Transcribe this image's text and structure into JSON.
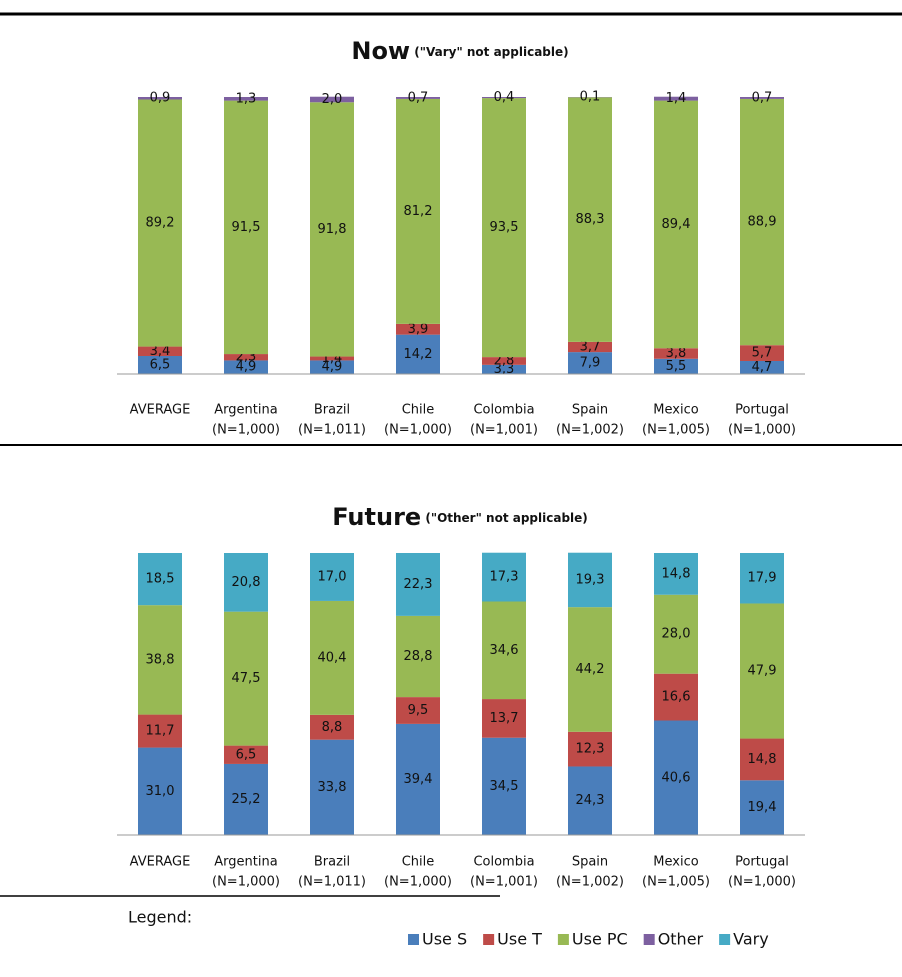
{
  "chart_data": [
    {
      "type": "stacked-bar",
      "title": "Now",
      "subtitle": "(\"Vary\" not applicable)",
      "categories": [
        [
          "AVERAGE"
        ],
        [
          "Argentina",
          "(N=1,000)"
        ],
        [
          "Brazil",
          "(N=1,011)"
        ],
        [
          "Chile",
          "(N=1,000)"
        ],
        [
          "Colombia",
          "(N=1,001)"
        ],
        [
          "Spain",
          "(N=1,002)"
        ],
        [
          "Mexico",
          "(N=1,005)"
        ],
        [
          "Portugal",
          "(N=1,000)"
        ]
      ],
      "ylim": [
        0,
        100
      ],
      "series": [
        {
          "name": "Use S",
          "color": "#4a7ebb",
          "values": [
            6.5,
            4.9,
            4.9,
            14.2,
            3.3,
            7.9,
            5.5,
            4.7
          ],
          "value_labels": [
            "6,5",
            "4,9",
            "4,9",
            "14,2",
            "3,3",
            "7,9",
            "5,5",
            "4,7"
          ]
        },
        {
          "name": "Use T",
          "color": "#be4b48",
          "values": [
            3.4,
            2.3,
            1.4,
            3.9,
            2.8,
            3.7,
            3.8,
            5.7
          ],
          "value_labels": [
            "3,4",
            "2,3",
            "1,4",
            "3,9",
            "2,8",
            "3,7",
            "3,8",
            "5,7"
          ]
        },
        {
          "name": "Use PC",
          "color": "#98b954",
          "values": [
            89.2,
            91.5,
            91.8,
            81.2,
            93.5,
            88.3,
            89.4,
            88.9
          ],
          "value_labels": [
            "89,2",
            "91,5",
            "91,8",
            "81,2",
            "93,5",
            "88,3",
            "89,4",
            "88,9"
          ]
        },
        {
          "name": "Other",
          "color": "#7d60a0",
          "values": [
            0.9,
            1.3,
            2.0,
            0.7,
            0.4,
            0.1,
            1.4,
            0.7
          ],
          "value_labels": [
            "0,9",
            "1,3",
            "2,0",
            "0,7",
            "0,4",
            "0,1",
            "1,4",
            "0,7"
          ]
        }
      ]
    },
    {
      "type": "stacked-bar",
      "title": "Future",
      "subtitle": "(\"Other\" not applicable)",
      "categories": [
        [
          "AVERAGE"
        ],
        [
          "Argentina",
          "(N=1,000)"
        ],
        [
          "Brazil",
          "(N=1,011)"
        ],
        [
          "Chile",
          "(N=1,000)"
        ],
        [
          "Colombia",
          "(N=1,001)"
        ],
        [
          "Spain",
          "(N=1,002)"
        ],
        [
          "Mexico",
          "(N=1,005)"
        ],
        [
          "Portugal",
          "(N=1,000)"
        ]
      ],
      "ylim": [
        0,
        100
      ],
      "series": [
        {
          "name": "Use S",
          "color": "#4a7ebb",
          "values": [
            31.0,
            25.2,
            33.8,
            39.4,
            34.5,
            24.3,
            40.6,
            19.4
          ],
          "value_labels": [
            "31,0",
            "25,2",
            "33,8",
            "39,4",
            "34,5",
            "24,3",
            "40,6",
            "19,4"
          ]
        },
        {
          "name": "Use T",
          "color": "#be4b48",
          "values": [
            11.7,
            6.5,
            8.8,
            9.5,
            13.7,
            12.3,
            16.6,
            14.8
          ],
          "value_labels": [
            "11,7",
            "6,5",
            "8,8",
            "9,5",
            "13,7",
            "12,3",
            "16,6",
            "14,8"
          ]
        },
        {
          "name": "Use PC",
          "color": "#98b954",
          "values": [
            38.8,
            47.5,
            40.4,
            28.8,
            34.6,
            44.2,
            28.0,
            47.9
          ],
          "value_labels": [
            "38,8",
            "47,5",
            "40,4",
            "28,8",
            "34,6",
            "44,2",
            "28,0",
            "47,9"
          ]
        },
        {
          "name": "Vary",
          "color": "#46aac5",
          "values": [
            18.5,
            20.8,
            17.0,
            22.3,
            17.3,
            19.3,
            14.8,
            17.9
          ],
          "value_labels": [
            "18,5",
            "20,8",
            "17,0",
            "22,3",
            "17,3",
            "19,3",
            "14,8",
            "17,9"
          ]
        }
      ]
    }
  ],
  "legend": {
    "title": "Legend:",
    "entries": [
      {
        "name": "Use S",
        "color": "#4a7ebb"
      },
      {
        "name": "Use T",
        "color": "#be4b48"
      },
      {
        "name": "Use PC",
        "color": "#98b954"
      },
      {
        "name": "Other",
        "color": "#7d60a0"
      },
      {
        "name": "Vary",
        "color": "#46aac5"
      }
    ]
  }
}
